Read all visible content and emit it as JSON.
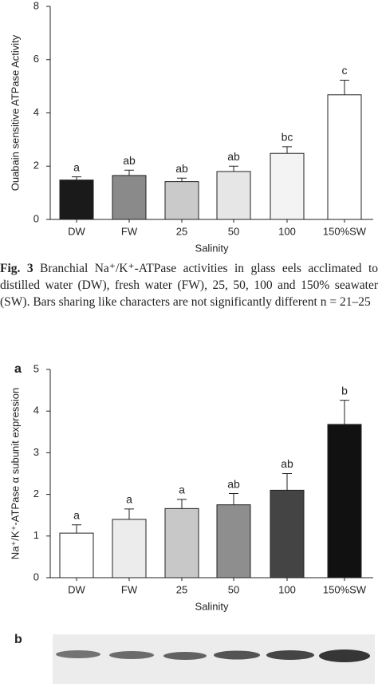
{
  "chart_data": [
    {
      "type": "bar",
      "ylabel": "Ouabain sensitive ATPase Activity",
      "xlabel": "Salinity",
      "categories": [
        "DW",
        "FW",
        "25",
        "50",
        "100",
        "150%SW"
      ],
      "values": [
        1.48,
        1.65,
        1.42,
        1.8,
        2.48,
        4.68
      ],
      "errors": [
        0.12,
        0.2,
        0.13,
        0.2,
        0.25,
        0.55
      ],
      "annotations": [
        "a",
        "ab",
        "ab",
        "ab",
        "bc",
        "c"
      ],
      "colors": [
        "#1a1a1a",
        "#8a8a8a",
        "#cacaca",
        "#e6e6e6",
        "#f3f3f3",
        "#ffffff"
      ],
      "ylim": [
        0,
        8
      ],
      "yticks": [
        0,
        2,
        4,
        6,
        8
      ]
    },
    {
      "type": "bar",
      "panel": "a",
      "ylabel": "Na⁺/K⁺-ATPase α subunit expression",
      "xlabel": "Salinity",
      "categories": [
        "DW",
        "FW",
        "25",
        "50",
        "100",
        "150%SW"
      ],
      "values": [
        1.07,
        1.4,
        1.66,
        1.75,
        2.1,
        3.68
      ],
      "errors": [
        0.2,
        0.25,
        0.22,
        0.27,
        0.4,
        0.58
      ],
      "annotations": [
        "a",
        "a",
        "a",
        "ab",
        "ab",
        "b"
      ],
      "colors": [
        "#ffffff",
        "#ececec",
        "#c8c8c8",
        "#8e8e8e",
        "#444444",
        "#111111"
      ],
      "ylim": [
        0,
        5
      ],
      "yticks": [
        0,
        1,
        2,
        3,
        4,
        5
      ]
    }
  ],
  "caption": {
    "label": "Fig. 3",
    "text": "Branchial Na⁺/K⁺-ATPase activities in glass eels acclimated to distilled water (DW), fresh water (FW), 25, 50, 100 and 150% seawater (SW). Bars sharing like characters are not significantly different n = 21–25"
  },
  "blot_panel": "b"
}
